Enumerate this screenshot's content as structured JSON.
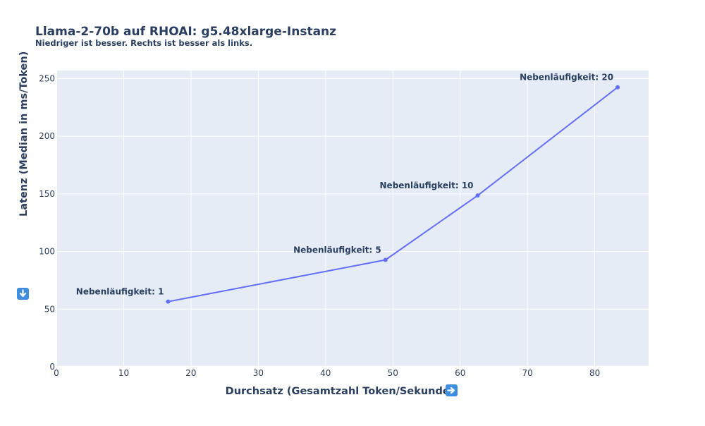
{
  "chart_data": {
    "type": "line",
    "title": "Llama-2-70b auf RHOAI: g5.48xlarge-Instanz",
    "subtitle": "Niedriger ist besser. Rechts ist besser als links.",
    "xlabel": "Durchsatz (Gesamtzahl Token/Sekunde)",
    "ylabel": "Latenz (Median in ms/Token)",
    "xlabel_icon": "right-arrow-emoji-icon",
    "ylabel_icon": "down-arrow-emoji-icon",
    "xlim": [
      0,
      88
    ],
    "ylim": [
      0,
      257
    ],
    "x_ticks": [
      0,
      10,
      20,
      30,
      40,
      50,
      60,
      70,
      80
    ],
    "y_ticks": [
      0,
      50,
      100,
      150,
      200,
      250
    ],
    "grid": true,
    "line_color": "#636efa",
    "plot_bg": "#e5ecf6",
    "points": [
      {
        "x": 16.6,
        "y": 56.5,
        "label": "Nebenläufigkeit: 1"
      },
      {
        "x": 48.9,
        "y": 92.7,
        "label": "Nebenläufigkeit: 5"
      },
      {
        "x": 62.6,
        "y": 148.6,
        "label": "Nebenläufigkeit: 10"
      },
      {
        "x": 83.4,
        "y": 242.5,
        "label": "Nebenläufigkeit: 20"
      }
    ]
  }
}
